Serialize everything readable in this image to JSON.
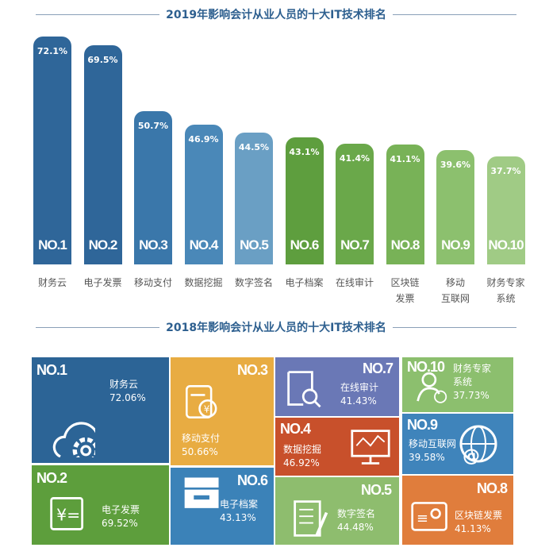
{
  "chart_data": [
    {
      "type": "bar",
      "title": "2019年影响会计从业人员的十大IT技术排名",
      "categories": [
        "财务云",
        "电子发票",
        "移动支付",
        "数据挖掘",
        "数字签名",
        "电子档案",
        "在线审计",
        "区块链发票",
        "移动互联网",
        "财务专家系统"
      ],
      "category_lines": [
        [
          "财务云"
        ],
        [
          "电子发票"
        ],
        [
          "移动支付"
        ],
        [
          "数据挖掘"
        ],
        [
          "数字签名"
        ],
        [
          "电子档案"
        ],
        [
          "在线审计"
        ],
        [
          "区块链",
          "发票"
        ],
        [
          "移动",
          "互联网"
        ],
        [
          "财务专家",
          "系统"
        ]
      ],
      "ranks": [
        "NO.1",
        "NO.2",
        "NO.3",
        "NO.4",
        "NO.5",
        "NO.6",
        "NO.7",
        "NO.8",
        "NO.9",
        "NO.10"
      ],
      "values": [
        72.1,
        69.5,
        50.7,
        46.9,
        44.5,
        43.1,
        41.4,
        41.1,
        39.6,
        37.7
      ],
      "value_labels": [
        "72.1%",
        "69.5%",
        "50.7%",
        "46.9%",
        "44.5%",
        "43.1%",
        "41.4%",
        "41.1%",
        "39.6%",
        "37.7%"
      ],
      "colors": [
        "#2f6699",
        "#2f6699",
        "#3a77aa",
        "#4a88b8",
        "#6a9fc4",
        "#5e9e3e",
        "#6aa84a",
        "#78b257",
        "#8cc06e",
        "#a0cb85"
      ],
      "grid": false
    },
    {
      "type": "treemap",
      "title": "2018年影响会计从业人员的十大IT技术排名",
      "items": [
        {
          "rank": "NO.1",
          "name": "财务云",
          "value": 72.06,
          "label": "72.06%",
          "color": "#2c6496",
          "icon": "cloud-gear-icon"
        },
        {
          "rank": "NO.2",
          "name": "电子发票",
          "value": 69.52,
          "label": "69.52%",
          "color": "#5d9e3c",
          "icon": "invoice-icon"
        },
        {
          "rank": "NO.3",
          "name": "移动支付",
          "value": 50.66,
          "label": "50.66%",
          "color": "#e8ac42",
          "icon": "yen-payment-icon"
        },
        {
          "rank": "NO.4",
          "name": "数据挖掘",
          "value": 46.92,
          "label": "46.92%",
          "color": "#c8502b",
          "icon": "monitor-chart-icon"
        },
        {
          "rank": "NO.5",
          "name": "数字签名",
          "value": 44.48,
          "label": "44.48%",
          "color": "#8ebd6e",
          "icon": "document-pen-icon"
        },
        {
          "rank": "NO.6",
          "name": "电子档案",
          "value": 43.13,
          "label": "43.13%",
          "color": "#3b82b8",
          "icon": "archive-box-icon"
        },
        {
          "rank": "NO.7",
          "name": "在线审计",
          "value": 41.43,
          "label": "41.43%",
          "color": "#6a78b6",
          "icon": "document-search-icon"
        },
        {
          "rank": "NO.8",
          "name": "区块链发票",
          "value": 41.13,
          "label": "41.13%",
          "color": "#e07d3c",
          "icon": "id-card-icon"
        },
        {
          "rank": "NO.9",
          "name": "移动互联网",
          "value": 39.58,
          "label": "39.58%",
          "color": "#3f84bb",
          "icon": "globe-at-icon"
        },
        {
          "rank": "NO.10",
          "name": "财务专家系统",
          "name_lines": [
            "财务专家",
            "系统"
          ],
          "value": 37.73,
          "label": "37.73%",
          "color": "#8cbf6e",
          "icon": "user-check-icon"
        }
      ]
    }
  ]
}
